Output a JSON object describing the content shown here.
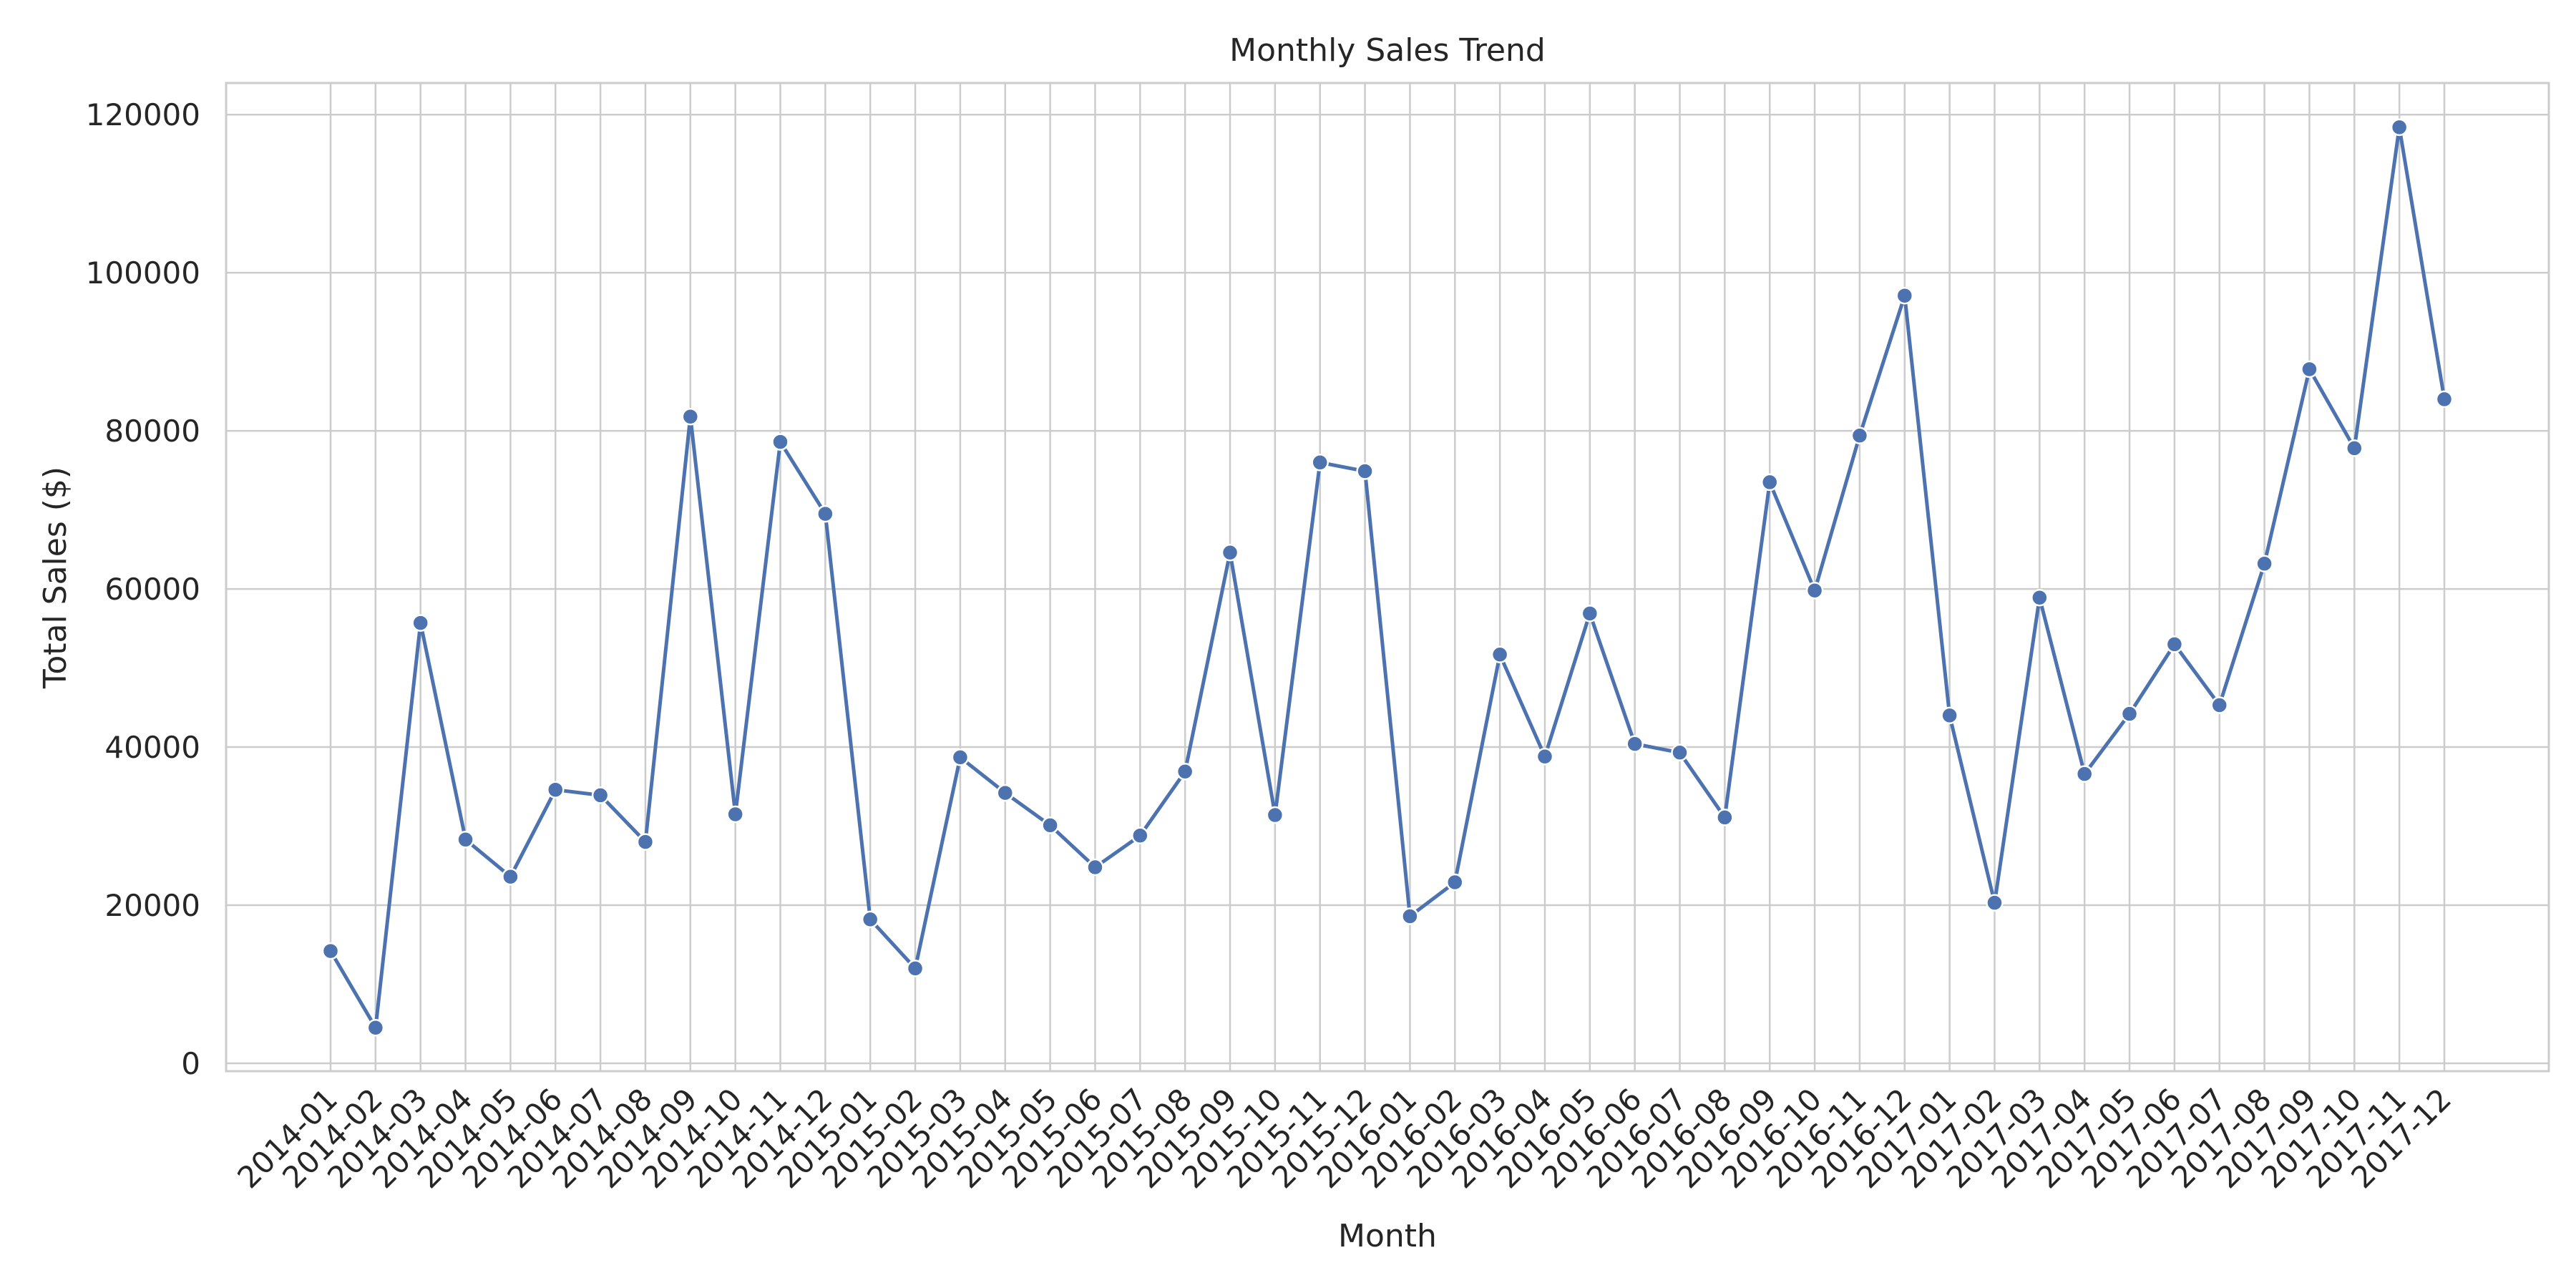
{
  "colors": {
    "line": "#4c72b0",
    "grid": "#cccccc",
    "text": "#262626",
    "background": "#ffffff"
  },
  "chart_data": {
    "type": "line",
    "title": "Monthly Sales Trend",
    "xlabel": "Month",
    "ylabel": "Total Sales ($)",
    "grid": true,
    "markers": true,
    "ylim": [
      -1000,
      124000
    ],
    "yticks": [
      0,
      20000,
      40000,
      60000,
      80000,
      100000,
      120000
    ],
    "ytick_labels": [
      "0",
      "20000",
      "40000",
      "60000",
      "80000",
      "100000",
      "120000"
    ],
    "categories": [
      "2014-01",
      "2014-02",
      "2014-03",
      "2014-04",
      "2014-05",
      "2014-06",
      "2014-07",
      "2014-08",
      "2014-09",
      "2014-10",
      "2014-11",
      "2014-12",
      "2015-01",
      "2015-02",
      "2015-03",
      "2015-04",
      "2015-05",
      "2015-06",
      "2015-07",
      "2015-08",
      "2015-09",
      "2015-10",
      "2015-11",
      "2015-12",
      "2016-01",
      "2016-02",
      "2016-03",
      "2016-04",
      "2016-05",
      "2016-06",
      "2016-07",
      "2016-08",
      "2016-09",
      "2016-10",
      "2016-11",
      "2016-12",
      "2017-01",
      "2017-02",
      "2017-03",
      "2017-04",
      "2017-05",
      "2017-06",
      "2017-07",
      "2017-08",
      "2017-09",
      "2017-10",
      "2017-11",
      "2017-12"
    ],
    "series": [
      {
        "name": "Total Sales",
        "values": [
          14200,
          4500,
          55700,
          28300,
          23600,
          34600,
          33900,
          28000,
          81800,
          31500,
          78600,
          69500,
          18200,
          12000,
          38700,
          34200,
          30100,
          24800,
          28800,
          36900,
          64600,
          31400,
          76000,
          74900,
          18600,
          22900,
          51700,
          38800,
          56900,
          40400,
          39300,
          31100,
          73500,
          59800,
          79400,
          97100,
          44000,
          20300,
          58900,
          36600,
          44200,
          53000,
          45300,
          63200,
          87800,
          77800,
          118400,
          84000
        ]
      }
    ]
  }
}
